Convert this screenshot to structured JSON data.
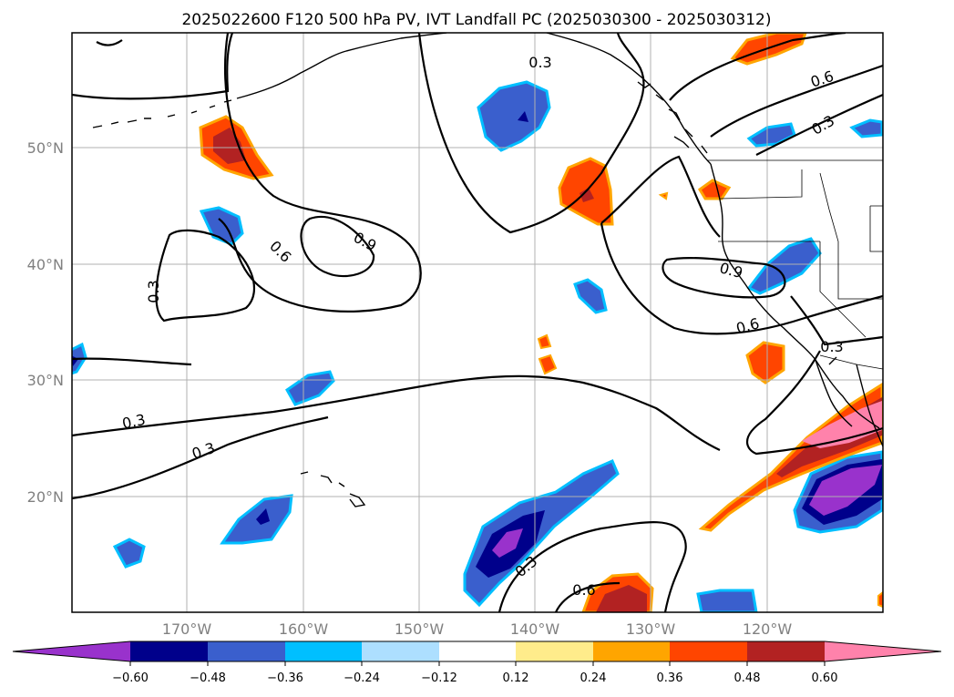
{
  "title": "2025022600 F120 500 hPa PV, IVT Landfall PC (2025030300 - 2025030312)",
  "map": {
    "lat_labels": [
      "50°N",
      "40°N",
      "30°N",
      "20°N"
    ],
    "lon_labels": [
      "170°W",
      "160°W",
      "150°W",
      "140°W",
      "130°W",
      "120°W"
    ],
    "contour_labels": [
      "0.3",
      "0.6",
      "0.3",
      "0.6",
      "0.9",
      "0.3",
      "0.3",
      "0.3",
      "0.9",
      "0.6",
      "0.3",
      "0.3",
      "0.6"
    ],
    "colors": {
      "purple": "#9932CC",
      "navy": "#00008B",
      "royal_blue": "#3A5FCD",
      "deep_sky_blue": "#00BFFF",
      "light_blue": "#ADDFFF",
      "light_yellow": "#FFEC8B",
      "orange": "#FFA500",
      "orange_red": "#FF4500",
      "firebrick": "#B22222",
      "pink": "#FF82AB"
    }
  },
  "colorbar": {
    "ticks": [
      "−0.60",
      "−0.48",
      "−0.36",
      "−0.24",
      "−0.12",
      "0.12",
      "0.24",
      "0.36",
      "0.48",
      "0.60"
    ],
    "colors": [
      "#9932CC",
      "#00008B",
      "#3A5FCD",
      "#00BFFF",
      "#ADDFFF",
      "#FFFFFF",
      "#FFEC8B",
      "#FFA500",
      "#FF4500",
      "#B22222",
      "#FF82AB"
    ]
  }
}
